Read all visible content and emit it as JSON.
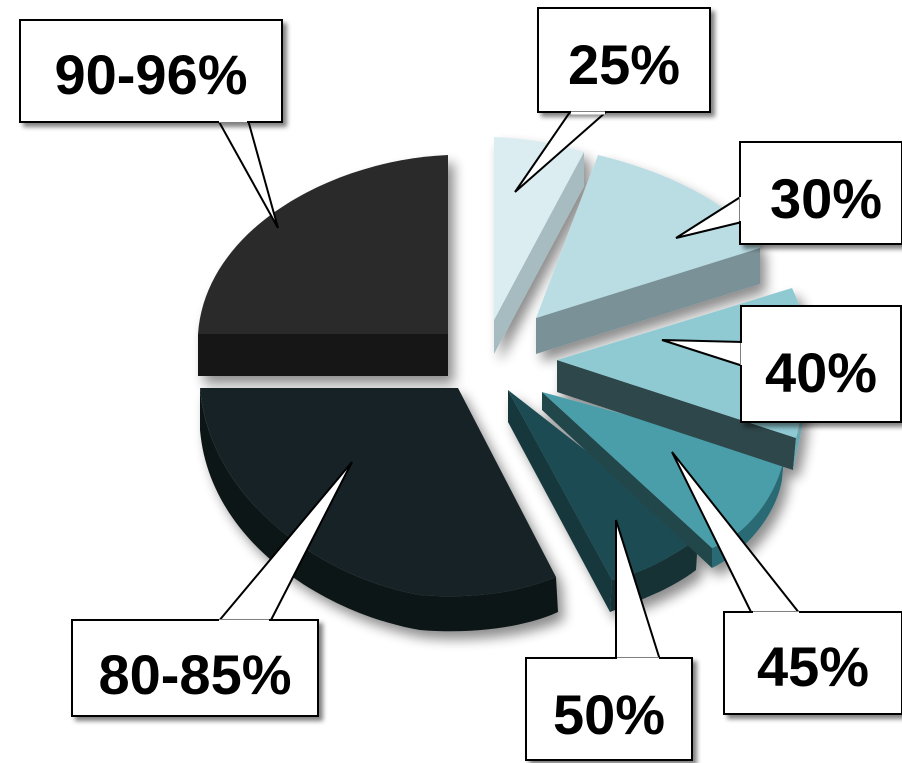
{
  "chart_data": {
    "type": "pie",
    "style": "3d-exploded",
    "slices": [
      {
        "label": "25%",
        "color": "#dcedf1"
      },
      {
        "label": "30%",
        "color": "#b9dde3"
      },
      {
        "label": "40%",
        "color": "#8fcad3"
      },
      {
        "label": "45%",
        "color": "#4a9ea9"
      },
      {
        "label": "50%",
        "color": "#1f4b52"
      },
      {
        "label": "80-85%",
        "color": "#152427"
      },
      {
        "label": "90-96%",
        "color": "#2a2a2a"
      }
    ],
    "legend": "none"
  }
}
